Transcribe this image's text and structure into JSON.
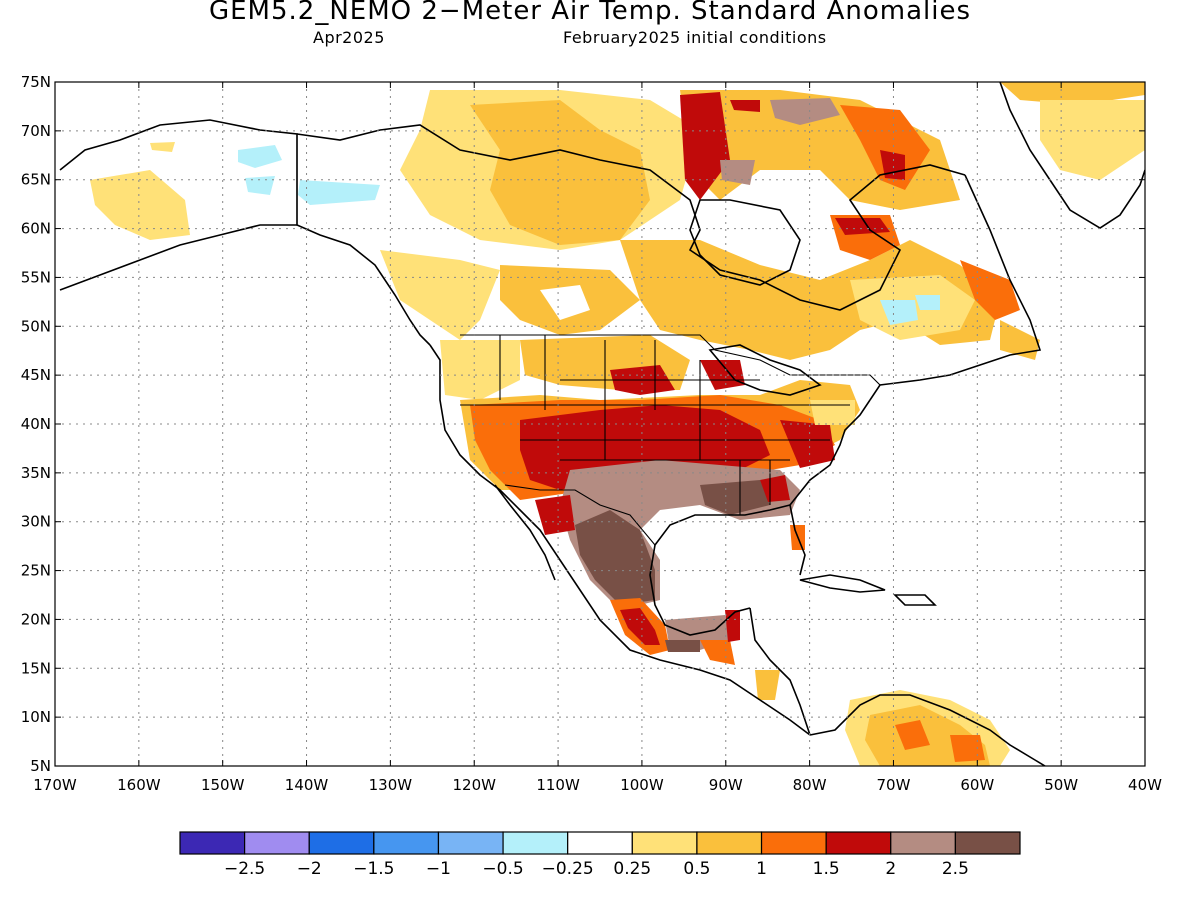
{
  "title": "GEM5.2_NEMO 2−Meter Air Temp. Standard Anomalies",
  "subtitle_left": "Apr2025",
  "subtitle_right": "February2025 initial conditions",
  "map": {
    "lon_range": [
      -170,
      -40
    ],
    "lat_range": [
      5,
      75
    ],
    "lat_ticks": [
      "75N",
      "70N",
      "65N",
      "60N",
      "55N",
      "50N",
      "45N",
      "40N",
      "35N",
      "30N",
      "25N",
      "20N",
      "15N",
      "10N",
      "5N"
    ],
    "lon_ticks": [
      "170W",
      "160W",
      "150W",
      "140W",
      "130W",
      "120W",
      "110W",
      "100W",
      "90W",
      "80W",
      "70W",
      "60W",
      "50W",
      "40W"
    ],
    "grid": "dotted"
  },
  "colorbar": {
    "colors": [
      "#3c28b4",
      "#a08cf0",
      "#1e6ee6",
      "#4696f0",
      "#78b4f5",
      "#b4f0fa",
      "#ffffff",
      "#ffe178",
      "#fac03c",
      "#fa6e0a",
      "#c00a0a",
      "#b48c82",
      "#785046"
    ],
    "labels": [
      "−2.5",
      "−2",
      "−1.5",
      "−1",
      "−0.5",
      "−0.25",
      "0.25",
      "0.5",
      "1",
      "1.5",
      "2",
      "2.5"
    ]
  }
}
